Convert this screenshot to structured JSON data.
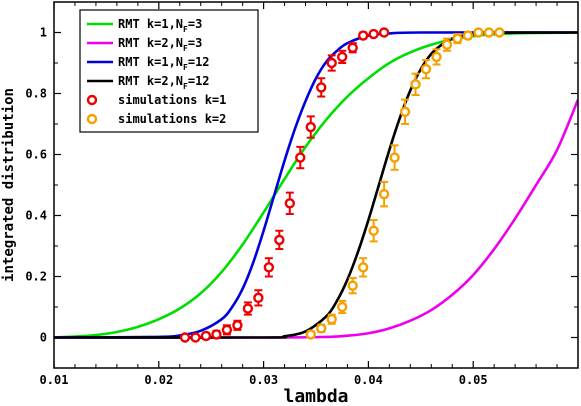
{
  "chart_data": {
    "type": "line",
    "title": "",
    "xlabel": "lambda",
    "ylabel": "integrated distribution",
    "xlim": [
      0.01,
      0.06
    ],
    "ylim": [
      -0.1,
      1.1
    ],
    "x_ticks": [
      0.01,
      0.02,
      0.03,
      0.04,
      0.05
    ],
    "x_tick_labels": [
      "0.01",
      "0.02",
      "0.03",
      "0.04",
      "0.05"
    ],
    "y_ticks": [
      0,
      0.2,
      0.4,
      0.6,
      0.8,
      1
    ],
    "y_tick_labels": [
      "0",
      "0.2",
      "0.4",
      "0.6",
      "0.8",
      "1"
    ],
    "grid": false,
    "legend_position": "top-left",
    "series": [
      {
        "name": "RMT k=1,N_F=3",
        "legend": {
          "main": "RMT k=1,N",
          "sub": "F",
          "tail": "=3"
        },
        "color": "#00dd00",
        "kind": "line",
        "x": [
          0.01,
          0.012,
          0.014,
          0.016,
          0.018,
          0.02,
          0.022,
          0.024,
          0.026,
          0.028,
          0.03,
          0.032,
          0.034,
          0.036,
          0.038,
          0.04,
          0.042,
          0.044,
          0.046,
          0.048,
          0.05,
          0.052,
          0.055,
          0.06
        ],
        "y": [
          0.0,
          0.003,
          0.008,
          0.018,
          0.035,
          0.06,
          0.095,
          0.145,
          0.215,
          0.305,
          0.41,
          0.52,
          0.625,
          0.715,
          0.79,
          0.85,
          0.9,
          0.935,
          0.96,
          0.977,
          0.988,
          0.994,
          0.998,
          1.0
        ]
      },
      {
        "name": "RMT k=2,N_F=3",
        "legend": {
          "main": "RMT k=2,N",
          "sub": "F",
          "tail": "=3"
        },
        "color": "#ee00ee",
        "kind": "line",
        "x": [
          0.01,
          0.03,
          0.036,
          0.038,
          0.04,
          0.042,
          0.044,
          0.046,
          0.048,
          0.05,
          0.052,
          0.054,
          0.056,
          0.058,
          0.06
        ],
        "y": [
          0.0,
          0.0,
          0.002,
          0.006,
          0.014,
          0.03,
          0.055,
          0.09,
          0.14,
          0.205,
          0.29,
          0.39,
          0.5,
          0.615,
          0.78
        ]
      },
      {
        "name": "RMT k=1,N_F=12",
        "legend": {
          "main": "RMT k=1,N",
          "sub": "F",
          "tail": "=12"
        },
        "color": "#0000dd",
        "kind": "line",
        "x": [
          0.01,
          0.02,
          0.022,
          0.024,
          0.026,
          0.027,
          0.028,
          0.029,
          0.03,
          0.031,
          0.032,
          0.033,
          0.034,
          0.035,
          0.036,
          0.037,
          0.038,
          0.04,
          0.042,
          0.045,
          0.06
        ],
        "y": [
          0.0,
          0.002,
          0.007,
          0.022,
          0.06,
          0.1,
          0.16,
          0.245,
          0.35,
          0.465,
          0.58,
          0.685,
          0.775,
          0.85,
          0.905,
          0.94,
          0.965,
          0.99,
          0.997,
          1.0,
          1.0
        ]
      },
      {
        "name": "RMT k=2,N_F=12",
        "legend": {
          "main": "RMT k=2,N",
          "sub": "F",
          "tail": "=12"
        },
        "color": "#000000",
        "kind": "line",
        "x": [
          0.01,
          0.03,
          0.032,
          0.034,
          0.036,
          0.037,
          0.038,
          0.039,
          0.04,
          0.041,
          0.042,
          0.043,
          0.044,
          0.045,
          0.046,
          0.047,
          0.048,
          0.05,
          0.052,
          0.06
        ],
        "y": [
          0.0,
          0.0,
          0.004,
          0.02,
          0.07,
          0.12,
          0.19,
          0.28,
          0.385,
          0.5,
          0.615,
          0.72,
          0.81,
          0.88,
          0.93,
          0.96,
          0.98,
          0.995,
          0.999,
          1.0
        ]
      },
      {
        "name": "simulations k=1",
        "legend": {
          "main": "simulations k=1",
          "sub": "",
          "tail": ""
        },
        "color": "#ee0000",
        "kind": "points",
        "x": [
          0.0225,
          0.0235,
          0.0245,
          0.0255,
          0.0265,
          0.0275,
          0.0285,
          0.0295,
          0.0305,
          0.0315,
          0.0325,
          0.0335,
          0.0345,
          0.0355,
          0.0365,
          0.0375,
          0.0385,
          0.0395,
          0.0405,
          0.0415
        ],
        "y": [
          0.0,
          0.0,
          0.005,
          0.01,
          0.025,
          0.04,
          0.095,
          0.13,
          0.23,
          0.32,
          0.44,
          0.59,
          0.69,
          0.82,
          0.9,
          0.92,
          0.95,
          0.99,
          0.995,
          1.0
        ],
        "err": [
          0.008,
          0.008,
          0.01,
          0.012,
          0.015,
          0.015,
          0.02,
          0.025,
          0.03,
          0.03,
          0.035,
          0.035,
          0.035,
          0.03,
          0.025,
          0.02,
          0.015,
          0.01,
          0.008,
          0.005
        ]
      },
      {
        "name": "simulations k=2",
        "legend": {
          "main": "simulations k=2",
          "sub": "",
          "tail": ""
        },
        "color": "#f5a000",
        "kind": "points",
        "x": [
          0.0345,
          0.0355,
          0.0365,
          0.0375,
          0.0385,
          0.0395,
          0.0405,
          0.0415,
          0.0425,
          0.0435,
          0.0445,
          0.0455,
          0.0465,
          0.0475,
          0.0485,
          0.0495,
          0.0505,
          0.0515,
          0.0525
        ],
        "y": [
          0.01,
          0.03,
          0.06,
          0.1,
          0.17,
          0.23,
          0.35,
          0.47,
          0.59,
          0.74,
          0.83,
          0.88,
          0.92,
          0.96,
          0.98,
          0.99,
          1.0,
          1.0,
          1.0
        ],
        "err": [
          0.01,
          0.012,
          0.015,
          0.02,
          0.025,
          0.03,
          0.035,
          0.04,
          0.04,
          0.04,
          0.035,
          0.03,
          0.025,
          0.02,
          0.015,
          0.01,
          0.008,
          0.005,
          0.005
        ]
      }
    ]
  }
}
